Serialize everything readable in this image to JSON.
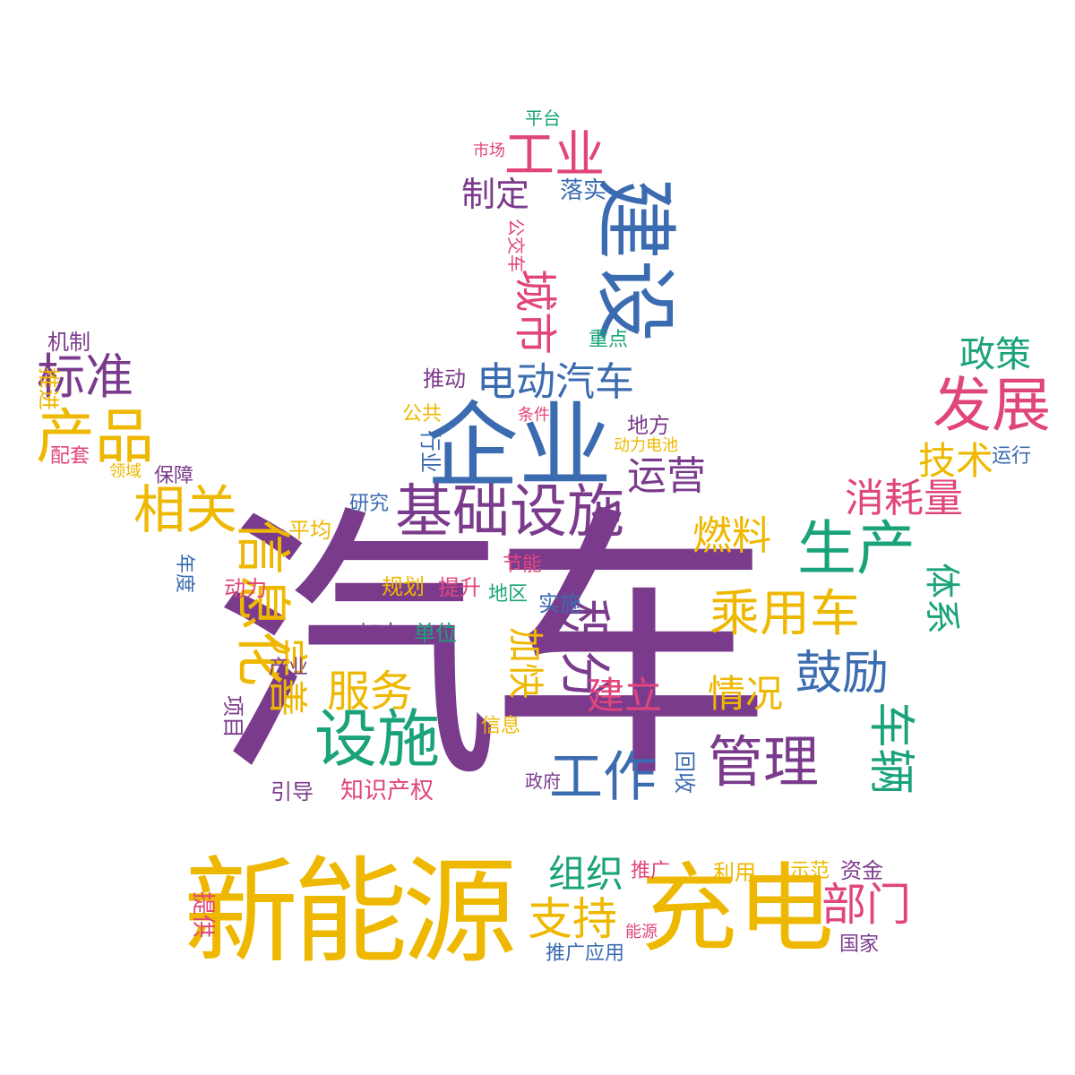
{
  "palette": {
    "purple": "#7b3b8c",
    "blue": "#3b6bb0",
    "gold": "#efb800",
    "pink": "#e0457b",
    "green": "#1aa37a"
  },
  "words": [
    {
      "text": "汽车",
      "color": "purple"
    },
    {
      "text": "企业",
      "color": "blue"
    },
    {
      "text": "新能源",
      "color": "gold"
    },
    {
      "text": "充电",
      "color": "gold"
    },
    {
      "text": "建设",
      "color": "blue"
    },
    {
      "text": "基础设施",
      "color": "purple"
    },
    {
      "text": "设施",
      "color": "green"
    },
    {
      "text": "发展",
      "color": "pink"
    },
    {
      "text": "生产",
      "color": "green"
    },
    {
      "text": "乘用车",
      "color": "gold"
    },
    {
      "text": "工业",
      "color": "pink"
    },
    {
      "text": "产品",
      "color": "gold"
    },
    {
      "text": "相关",
      "color": "gold"
    },
    {
      "text": "标准",
      "color": "purple"
    },
    {
      "text": "电动汽车",
      "color": "blue"
    },
    {
      "text": "城市",
      "color": "pink"
    },
    {
      "text": "信息化",
      "color": "gold"
    },
    {
      "text": "积分",
      "color": "purple"
    },
    {
      "text": "管理",
      "color": "purple"
    },
    {
      "text": "工作",
      "color": "blue"
    },
    {
      "text": "鼓励",
      "color": "blue"
    },
    {
      "text": "服务",
      "color": "gold"
    },
    {
      "text": "支持",
      "color": "gold"
    },
    {
      "text": "部门",
      "color": "pink"
    },
    {
      "text": "组织",
      "color": "green"
    },
    {
      "text": "车辆",
      "color": "green"
    },
    {
      "text": "技术",
      "color": "gold"
    },
    {
      "text": "消耗量",
      "color": "pink"
    },
    {
      "text": "政策",
      "color": "green"
    },
    {
      "text": "运营",
      "color": "purple"
    },
    {
      "text": "燃料",
      "color": "gold"
    },
    {
      "text": "体系",
      "color": "green"
    },
    {
      "text": "完善",
      "color": "gold"
    },
    {
      "text": "加快",
      "color": "gold"
    },
    {
      "text": "建立",
      "color": "pink"
    },
    {
      "text": "情况",
      "color": "gold"
    },
    {
      "text": "制定",
      "color": "purple"
    },
    {
      "text": "落实",
      "color": "blue"
    },
    {
      "text": "平台",
      "color": "green"
    },
    {
      "text": "市场",
      "color": "pink"
    },
    {
      "text": "公交车",
      "color": "pink"
    },
    {
      "text": "重点",
      "color": "green"
    },
    {
      "text": "推动",
      "color": "purple"
    },
    {
      "text": "公共",
      "color": "gold"
    },
    {
      "text": "条件",
      "color": "pink"
    },
    {
      "text": "地方",
      "color": "purple"
    },
    {
      "text": "动力电池",
      "color": "gold"
    },
    {
      "text": "行业",
      "color": "blue"
    },
    {
      "text": "运行",
      "color": "blue"
    },
    {
      "text": "研究",
      "color": "blue"
    },
    {
      "text": "平均",
      "color": "gold"
    },
    {
      "text": "节能",
      "color": "pink"
    },
    {
      "text": "规划",
      "color": "gold"
    },
    {
      "text": "提升",
      "color": "pink"
    },
    {
      "text": "地区",
      "color": "green"
    },
    {
      "text": "实施",
      "color": "blue"
    },
    {
      "text": "加大",
      "color": "purple"
    },
    {
      "text": "单位",
      "color": "green"
    },
    {
      "text": "产业",
      "color": "purple"
    },
    {
      "text": "信息",
      "color": "gold"
    },
    {
      "text": "政府",
      "color": "purple"
    },
    {
      "text": "回收",
      "color": "blue"
    },
    {
      "text": "知识产权",
      "color": "pink"
    },
    {
      "text": "引导",
      "color": "purple"
    },
    {
      "text": "项目",
      "color": "purple"
    },
    {
      "text": "动力",
      "color": "pink"
    },
    {
      "text": "年度",
      "color": "blue"
    },
    {
      "text": "机制",
      "color": "purple"
    },
    {
      "text": "推进",
      "color": "gold"
    },
    {
      "text": "配套",
      "color": "pink"
    },
    {
      "text": "领域",
      "color": "gold"
    },
    {
      "text": "保障",
      "color": "purple"
    },
    {
      "text": "推广",
      "color": "pink"
    },
    {
      "text": "利用",
      "color": "gold"
    },
    {
      "text": "示范",
      "color": "gold"
    },
    {
      "text": "资金",
      "color": "purple"
    },
    {
      "text": "能源",
      "color": "pink"
    },
    {
      "text": "推广应用",
      "color": "blue"
    },
    {
      "text": "国家",
      "color": "purple"
    },
    {
      "text": "提供",
      "color": "pink"
    }
  ]
}
